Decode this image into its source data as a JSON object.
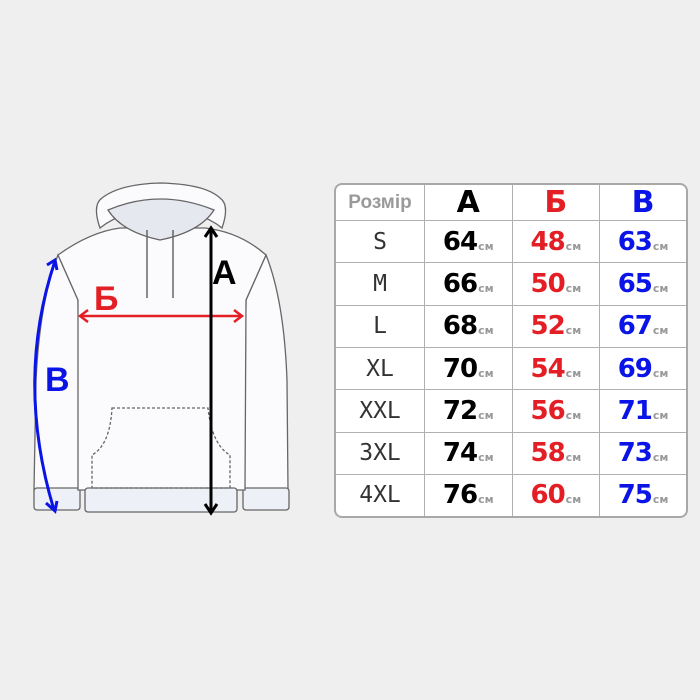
{
  "labels": {
    "a": "A",
    "b": "Б",
    "v": "B"
  },
  "colors": {
    "a": "#000000",
    "b": "#e31e24",
    "v": "#0a14e6",
    "header_muted": "#9a9a9a"
  },
  "table": {
    "headers": [
      "Розмір",
      "A",
      "Б",
      "B"
    ],
    "unit": "см",
    "rows": [
      {
        "size": "S",
        "a": "64",
        "b": "48",
        "v": "63"
      },
      {
        "size": "M",
        "a": "66",
        "b": "50",
        "v": "65"
      },
      {
        "size": "L",
        "a": "68",
        "b": "52",
        "v": "67"
      },
      {
        "size": "XL",
        "a": "70",
        "b": "54",
        "v": "69"
      },
      {
        "size": "XXL",
        "a": "72",
        "b": "56",
        "v": "71"
      },
      {
        "size": "3XL",
        "a": "74",
        "b": "58",
        "v": "73"
      },
      {
        "size": "4XL",
        "a": "76",
        "b": "60",
        "v": "75"
      }
    ]
  }
}
